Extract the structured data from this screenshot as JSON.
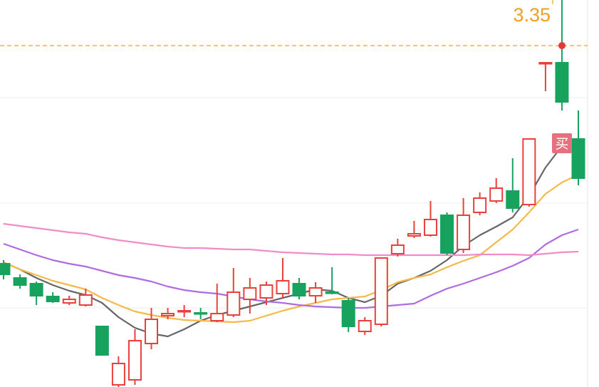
{
  "chart_data": {
    "type": "candlestick",
    "ylim": [
      2.1525,
      3.51
    ],
    "up_color": "#e8403a",
    "down_color": "#17a35e",
    "open": [
      2.585,
      2.535,
      2.515,
      2.47,
      2.4475,
      2.44,
      2.365,
      2.16,
      2.1775,
      2.305,
      2.4025,
      2.4175,
      2.4125,
      2.385,
      2.405,
      2.46,
      2.465,
      2.48,
      2.515,
      2.4725,
      2.485,
      2.455,
      2.3475,
      2.3725,
      2.62,
      2.6825,
      2.685,
      2.755,
      2.635,
      2.765,
      2.805,
      2.84,
      2.7925,
      3.29,
      3.29,
      3.0225
    ],
    "high": [
      2.5975,
      2.5475,
      2.5225,
      2.485,
      2.4725,
      2.4975,
      2.365,
      2.26,
      2.355,
      2.43,
      2.43,
      2.44,
      2.43,
      2.515,
      2.57,
      2.535,
      2.5225,
      2.605,
      2.535,
      2.52,
      2.5725,
      2.465,
      2.3975,
      2.605,
      2.6725,
      2.735,
      2.805,
      2.765,
      2.815,
      2.835,
      2.885,
      2.955,
      3.0225,
      3.29,
      3.51,
      3.1225
    ],
    "low": [
      2.53,
      2.4975,
      2.44,
      2.4475,
      2.44,
      2.435,
      2.265,
      2.1525,
      2.16,
      2.285,
      2.39,
      2.3975,
      2.39,
      2.38,
      2.3975,
      2.41,
      2.44,
      2.465,
      2.46,
      2.4475,
      2.4775,
      2.345,
      2.335,
      2.365,
      2.61,
      2.675,
      2.68,
      2.615,
      2.6225,
      2.755,
      2.7975,
      2.765,
      2.785,
      3.19,
      3.1225,
      2.86
    ],
    "close": [
      2.5475,
      2.51,
      2.4725,
      2.4525,
      2.46,
      2.475,
      2.265,
      2.235,
      2.315,
      2.39,
      2.41,
      2.42,
      2.41,
      2.41,
      2.485,
      2.5,
      2.51,
      2.525,
      2.4725,
      2.5,
      2.4825,
      2.365,
      2.385,
      2.605,
      2.65,
      2.69,
      2.74,
      2.6225,
      2.755,
      2.815,
      2.85,
      2.78,
      3.0225,
      3.29,
      3.1525,
      2.885
    ],
    "lines": [
      {
        "color": "#666666",
        "values": [
          2.59,
          2.565,
          2.535,
          2.51,
          2.49,
          2.475,
          2.4475,
          2.3975,
          2.36,
          2.34,
          2.33,
          2.355,
          2.385,
          2.405,
          2.42,
          2.435,
          2.45,
          2.465,
          2.48,
          2.495,
          2.49,
          2.465,
          2.45,
          2.4725,
          2.515,
          2.535,
          2.56,
          2.5975,
          2.6475,
          2.685,
          2.715,
          2.7475,
          2.8225,
          2.9225,
          2.9975,
          3.0225
        ]
      },
      {
        "color": "#f5b94a",
        "values": [
          2.59,
          2.565,
          2.545,
          2.525,
          2.51,
          2.495,
          2.465,
          2.44,
          2.4175,
          2.405,
          2.395,
          2.3875,
          2.385,
          2.3825,
          2.38,
          2.385,
          2.4025,
          2.42,
          2.435,
          2.4475,
          2.46,
          2.465,
          2.47,
          2.4925,
          2.52,
          2.535,
          2.5475,
          2.5725,
          2.595,
          2.615,
          2.66,
          2.705,
          2.765,
          2.83,
          2.87,
          2.8975
        ]
      },
      {
        "color": "#b06be0",
        "values": [
          2.655,
          2.635,
          2.615,
          2.5975,
          2.585,
          2.575,
          2.56,
          2.545,
          2.535,
          2.5225,
          2.505,
          2.4925,
          2.485,
          2.48,
          2.47,
          2.46,
          2.4525,
          2.4475,
          2.44,
          2.435,
          2.4325,
          2.43,
          2.43,
          2.435,
          2.44,
          2.445,
          2.4725,
          2.4975,
          2.515,
          2.535,
          2.555,
          2.5775,
          2.605,
          2.6525,
          2.685,
          2.705
        ]
      },
      {
        "color": "#f08cc8",
        "values": [
          2.725,
          2.7175,
          2.71,
          2.7025,
          2.695,
          2.69,
          2.6775,
          2.6675,
          2.66,
          2.6525,
          2.645,
          2.64,
          2.64,
          2.6375,
          2.635,
          2.635,
          2.63,
          2.625,
          2.6225,
          2.62,
          2.6175,
          2.6175,
          2.615,
          2.615,
          2.615,
          2.615,
          2.615,
          2.615,
          2.615,
          2.6175,
          2.6175,
          2.6175,
          2.615,
          2.62,
          2.625,
          2.6275
        ]
      }
    ],
    "price_line": {
      "value": 3.35,
      "color": "#f0a020"
    },
    "badge": {
      "text": "买",
      "color": "#e5707e"
    }
  }
}
